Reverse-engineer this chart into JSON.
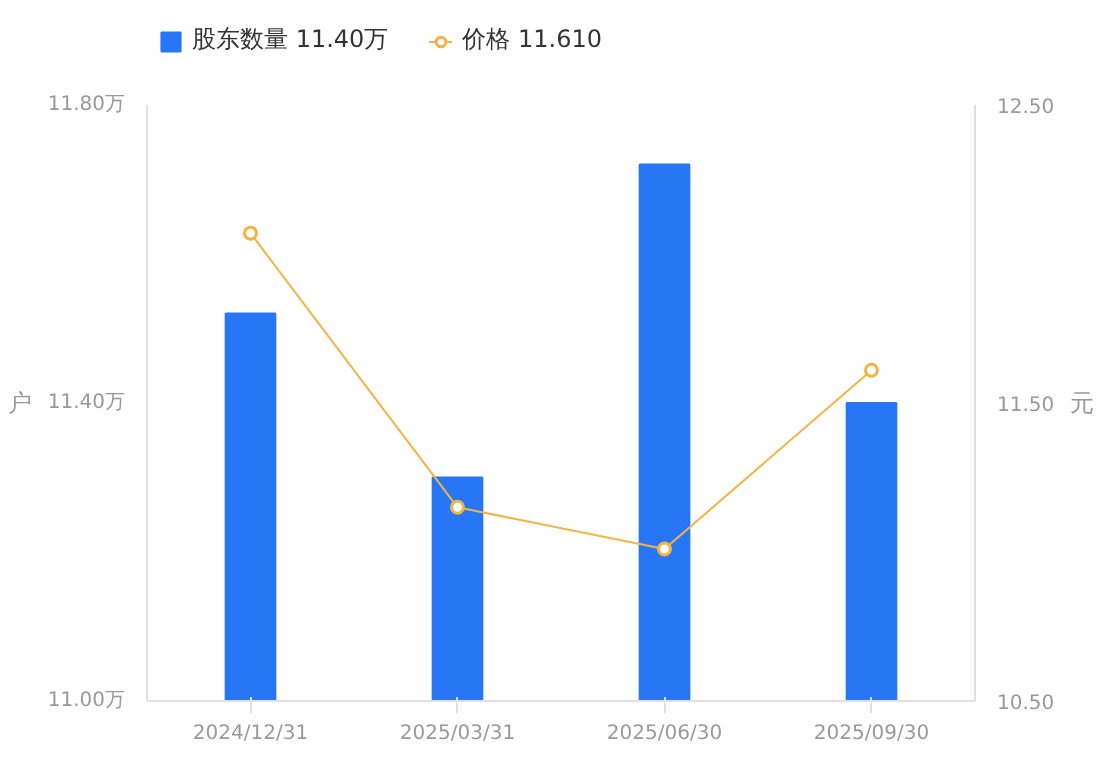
{
  "chart_data": {
    "type": "bar",
    "categories": [
      "2024/12/31",
      "2025/03/31",
      "2025/06/30",
      "2025/09/30"
    ],
    "series": [
      {
        "name": "股东数量 11.40万",
        "color": "#2776f6",
        "values": [
          11.52,
          11.3,
          11.72,
          11.4
        ]
      },
      {
        "name": "价格 11.610",
        "type": "line",
        "axis": "y2",
        "color": "#f5b342",
        "marker": "circle",
        "values": [
          12.07,
          11.15,
          11.01,
          11.61
        ]
      }
    ],
    "ylabel": "户",
    "y2label": "元",
    "ylim": [
      11.0,
      11.8
    ],
    "yticks": [
      {
        "value": 11.0,
        "label": "11.00万"
      },
      {
        "value": 11.4,
        "label": "11.40万"
      },
      {
        "value": 11.8,
        "label": "11.80万"
      }
    ],
    "y2lim": [
      10.5,
      12.5
    ],
    "y2ticks": [
      {
        "value": 10.5,
        "label": "10.50"
      },
      {
        "value": 11.5,
        "label": "11.50"
      },
      {
        "value": 12.5,
        "label": "12.50"
      }
    ],
    "legend": "top left",
    "grid": false
  }
}
